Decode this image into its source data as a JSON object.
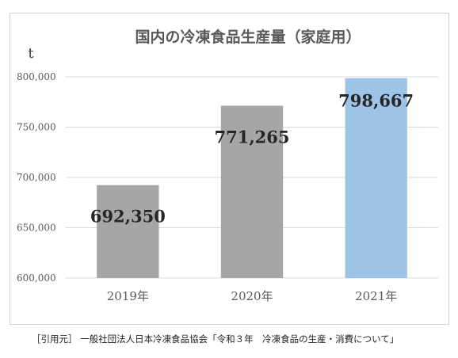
{
  "chart_data": {
    "type": "bar",
    "title": "国内の冷凍食品生産量（家庭用）",
    "ylabel": "t",
    "xlabel": "",
    "categories": [
      "2019年",
      "2020年",
      "2021年"
    ],
    "values": [
      692350,
      771265,
      798667
    ],
    "data_labels": [
      "692,350",
      "771,265",
      "798,667"
    ],
    "ylim": [
      600000,
      800000
    ],
    "yticks": [
      600000,
      650000,
      700000,
      750000,
      800000
    ],
    "ytick_labels": [
      "600,000",
      "650,000",
      "700,000",
      "750,000",
      "800,000"
    ],
    "bar_colors": [
      "#a6a6a6",
      "#a6a6a6",
      "#9dc3e6"
    ],
    "grid": true,
    "legend": "none"
  },
  "citation": "［引用元］ 一般社団法人日本冷凍食品協会「令和３年　冷凍食品の生産・消費について」"
}
